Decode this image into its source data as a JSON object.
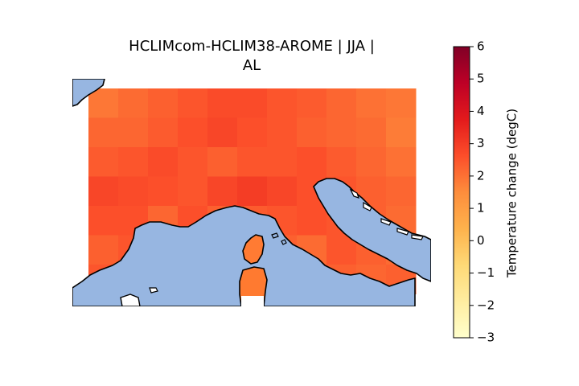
{
  "title": [
    "HCLIMcom-HCLIM38-AROME | JJA |",
    "AL"
  ],
  "chart_data": {
    "type": "heatmap",
    "title": "HCLIMcom-HCLIM38-AROME | JJA | AL",
    "grid": {
      "rows": 7,
      "cols": 11,
      "values": [
        [
          1.9,
          2.1,
          2.3,
          2.5,
          2.7,
          2.7,
          2.5,
          2.4,
          2.2,
          2.0,
          1.9
        ],
        [
          2.2,
          2.2,
          2.4,
          2.6,
          2.8,
          2.6,
          2.5,
          2.3,
          2.2,
          2.1,
          1.8
        ],
        [
          2.4,
          2.5,
          2.7,
          2.5,
          2.3,
          2.5,
          2.5,
          2.6,
          2.4,
          2.2,
          2.0
        ],
        [
          2.8,
          2.7,
          2.6,
          2.5,
          2.8,
          3.0,
          2.8,
          2.6,
          2.5,
          2.3,
          2.2
        ],
        [
          2.6,
          2.6,
          2.2,
          2.6,
          2.3,
          2.4,
          2.5,
          2.6,
          2.5,
          2.3,
          2.1
        ],
        [
          2.3,
          2.5,
          2.4,
          2.5,
          2.6,
          2.4,
          2.3,
          2.1,
          2.5,
          2.3,
          2.1
        ],
        [
          2.5,
          2.4,
          2.3,
          2.4,
          2.5,
          2.4,
          2.3,
          2.4,
          2.3,
          2.2,
          2.3
        ]
      ]
    },
    "colorbar": {
      "label": "Temperature change (degC)",
      "min": -3,
      "max": 6,
      "ticks": [
        -3,
        -2,
        -1,
        0,
        1,
        2,
        3,
        4,
        5,
        6
      ],
      "tick_labels": [
        "−3",
        "−2",
        "−1",
        "0",
        "1",
        "2",
        "3",
        "4",
        "5",
        "6"
      ],
      "colormap": "YlOrRd"
    },
    "colors": {
      "sea": "#97b6e1",
      "coastline": "#000000"
    }
  }
}
